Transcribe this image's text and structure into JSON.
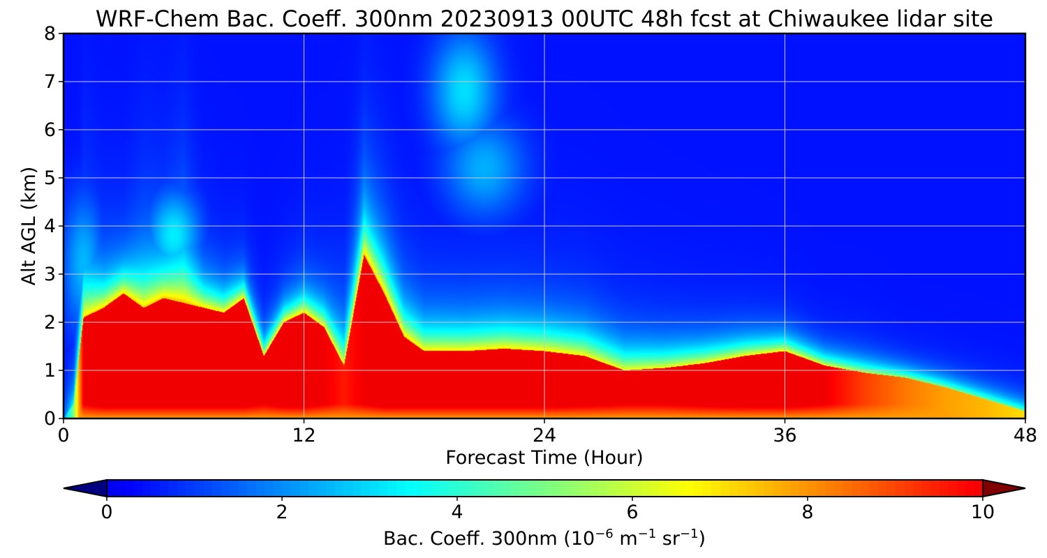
{
  "chart_data": {
    "type": "heatmap",
    "subtype": "filled-contour",
    "title": "WRF-Chem Bac. Coeff. 300nm  20230913 00UTC 48h fcst at Chiwaukee lidar site",
    "xlabel": "Forecast Time (Hour)",
    "ylabel": "Alt AGL (km)",
    "xlim": [
      0,
      48
    ],
    "ylim": [
      0,
      8
    ],
    "xticks": [
      0,
      12,
      24,
      36,
      48
    ],
    "yticks": [
      0,
      1,
      2,
      3,
      4,
      5,
      6,
      7,
      8
    ],
    "grid": true,
    "colormap": "jet",
    "colorbar": {
      "label_prefix": "Bac. Coeff. 300nm  (10",
      "label_exp1": "−6",
      "label_mid": " m",
      "label_exp2": "−1",
      "label_mid2": " sr",
      "label_exp3": "−1",
      "label_suffix": ")",
      "range": [
        0,
        10
      ],
      "ticks": [
        0,
        2,
        4,
        6,
        8,
        10
      ],
      "extend": "both",
      "orientation": "horizontal",
      "placement": "bottom",
      "min_extend_color": "#000080",
      "max_extend_color": "#800000"
    },
    "profiles": {
      "t": [
        0.0,
        0.5,
        1.0,
        2.0,
        3.0,
        4.0,
        5.0,
        6.0,
        7.0,
        8.0,
        9.0,
        10.0,
        11.0,
        12.0,
        13.0,
        14.0,
        15.0,
        16.0,
        17.0,
        18.0,
        20.0,
        22.0,
        24.0,
        26.0,
        28.0,
        30.0,
        32.0,
        34.0,
        36.0,
        38.0,
        40.0,
        42.0,
        44.0,
        46.0,
        48.0
      ],
      "mix_top_km": [
        0.0,
        0.3,
        2.1,
        2.3,
        2.6,
        2.3,
        2.5,
        2.4,
        2.3,
        2.2,
        2.5,
        1.3,
        2.0,
        2.2,
        1.9,
        1.1,
        3.4,
        2.6,
        1.7,
        1.4,
        1.4,
        1.45,
        1.4,
        1.3,
        1.0,
        1.05,
        1.15,
        1.3,
        1.4,
        1.1,
        0.95,
        0.85,
        0.65,
        0.4,
        0.15
      ],
      "core_value": [
        2.0,
        5.0,
        10.0,
        10.5,
        10.5,
        10.5,
        10.5,
        10.5,
        10.5,
        10.5,
        10.5,
        10.0,
        10.5,
        10.5,
        10.0,
        9.5,
        10.0,
        10.5,
        10.5,
        10.5,
        10.5,
        10.5,
        10.5,
        10.3,
        10.0,
        10.0,
        10.3,
        10.5,
        10.5,
        10.0,
        9.0,
        8.3,
        7.8,
        7.5,
        7.0
      ],
      "aloft_value": [
        0.8,
        1.2,
        2.6,
        2.2,
        2.0,
        2.3,
        2.6,
        2.9,
        1.8,
        1.4,
        1.6,
        1.5,
        1.8,
        2.1,
        2.0,
        2.4,
        3.6,
        3.0,
        2.2,
        1.7,
        1.6,
        1.6,
        1.5,
        1.4,
        1.3,
        1.2,
        1.1,
        1.1,
        1.0,
        0.9,
        0.9,
        0.8,
        0.8,
        0.8,
        0.8
      ],
      "aloft_depth_km": [
        1.0,
        1.2,
        1.8,
        1.3,
        1.2,
        1.8,
        1.5,
        1.9,
        1.2,
        1.1,
        0.9,
        0.8,
        0.8,
        0.9,
        1.0,
        1.3,
        1.5,
        1.4,
        1.3,
        1.3,
        1.3,
        1.3,
        1.3,
        1.3,
        1.2,
        1.1,
        1.0,
        0.9,
        0.8,
        0.7,
        0.7,
        0.6,
        0.6,
        0.6,
        0.6
      ],
      "background_value": 0.4,
      "lower_trough_km": 0.3,
      "lower_trough_value": 7.8
    },
    "plumes": [
      {
        "t": 20.0,
        "z": 6.8,
        "width_h": 1.6,
        "depth_km": 1.2,
        "value": 3.0
      },
      {
        "t": 21.0,
        "z": 5.2,
        "width_h": 2.0,
        "depth_km": 1.0,
        "value": 2.4
      },
      {
        "t": 5.5,
        "z": 3.8,
        "width_h": 1.3,
        "depth_km": 0.9,
        "value": 3.2
      },
      {
        "t": 1.0,
        "z": 3.2,
        "width_h": 1.0,
        "depth_km": 1.4,
        "value": 2.5
      }
    ]
  },
  "icons": {
    "colorbar_min_arrow": "triangle-left",
    "colorbar_max_arrow": "triangle-right"
  }
}
